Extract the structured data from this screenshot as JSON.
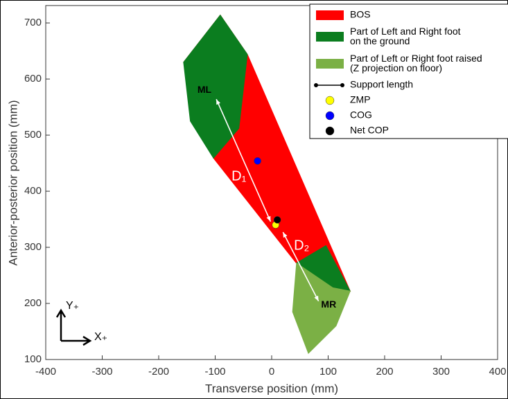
{
  "chart_data": {
    "type": "polygon",
    "xlabel": "Transverse position (mm)",
    "ylabel": "Anterior-posterior position (mm)",
    "xlim": [
      -400,
      400
    ],
    "ylim": [
      100,
      731
    ],
    "xticks": [
      -400,
      -300,
      -200,
      -100,
      0,
      100,
      200,
      300,
      400
    ],
    "yticks": [
      100,
      200,
      300,
      400,
      500,
      600,
      700
    ],
    "series": [
      {
        "name": "BOS",
        "kind": "polygon",
        "color": "#ff0000",
        "polygons": [
          {
            "x": [
              -91,
              -43,
              139,
              49,
              -103,
              -156
            ],
            "y": [
              714,
              644,
              222,
              265,
              459,
              630
            ]
          }
        ]
      },
      {
        "name": "Part of Left and Right foot\non the ground",
        "kind": "polygon",
        "color": "#0b7d1f",
        "polygons": [
          {
            "x": [
              -91,
              -43,
              -58,
              -103,
              -144,
              -156
            ],
            "y": [
              714,
              644,
              512,
              459,
              525,
              630
            ]
          },
          {
            "x": [
              44,
              96,
              139,
              108
            ],
            "y": [
              272,
              303,
              222,
              228
            ]
          }
        ]
      },
      {
        "name": "Part of Left or Right foot raised\n(Z projection on floor)",
        "kind": "polygon",
        "color": "#7bb045",
        "polygons": [
          {
            "x": [
              44,
              108,
              139,
              114,
              65,
              37
            ],
            "y": [
              272,
              228,
              222,
              160,
              111,
              185
            ]
          }
        ]
      },
      {
        "name": "Support length",
        "kind": "segments",
        "color": "#000000",
        "line_color": "#ffffff",
        "segments": [
          {
            "x": [
              -98,
              -2
            ],
            "y": [
              564,
              346
            ]
          },
          {
            "x": [
              83,
              20
            ],
            "y": [
              204,
              327
            ]
          }
        ]
      },
      {
        "name": "ZMP",
        "kind": "scatter",
        "color": "#ffff00",
        "x": [
          7
        ],
        "y": [
          340
        ]
      },
      {
        "name": "COG",
        "kind": "scatter",
        "color": "#0000ff",
        "x": [
          -25
        ],
        "y": [
          454
        ]
      },
      {
        "name": "Net COP",
        "kind": "scatter",
        "color": "#000000",
        "x": [
          10
        ],
        "y": [
          349
        ]
      }
    ],
    "annotations": [
      {
        "text": "ML",
        "x": -119,
        "y": 580
      },
      {
        "text": "MR",
        "x": 101,
        "y": 197
      },
      {
        "text": "D₁",
        "x": -58,
        "y": 426
      },
      {
        "text": "D₂",
        "x": 53,
        "y": 302
      }
    ],
    "compass": {
      "y_label": "Y₊",
      "x_label": "X₊"
    }
  }
}
